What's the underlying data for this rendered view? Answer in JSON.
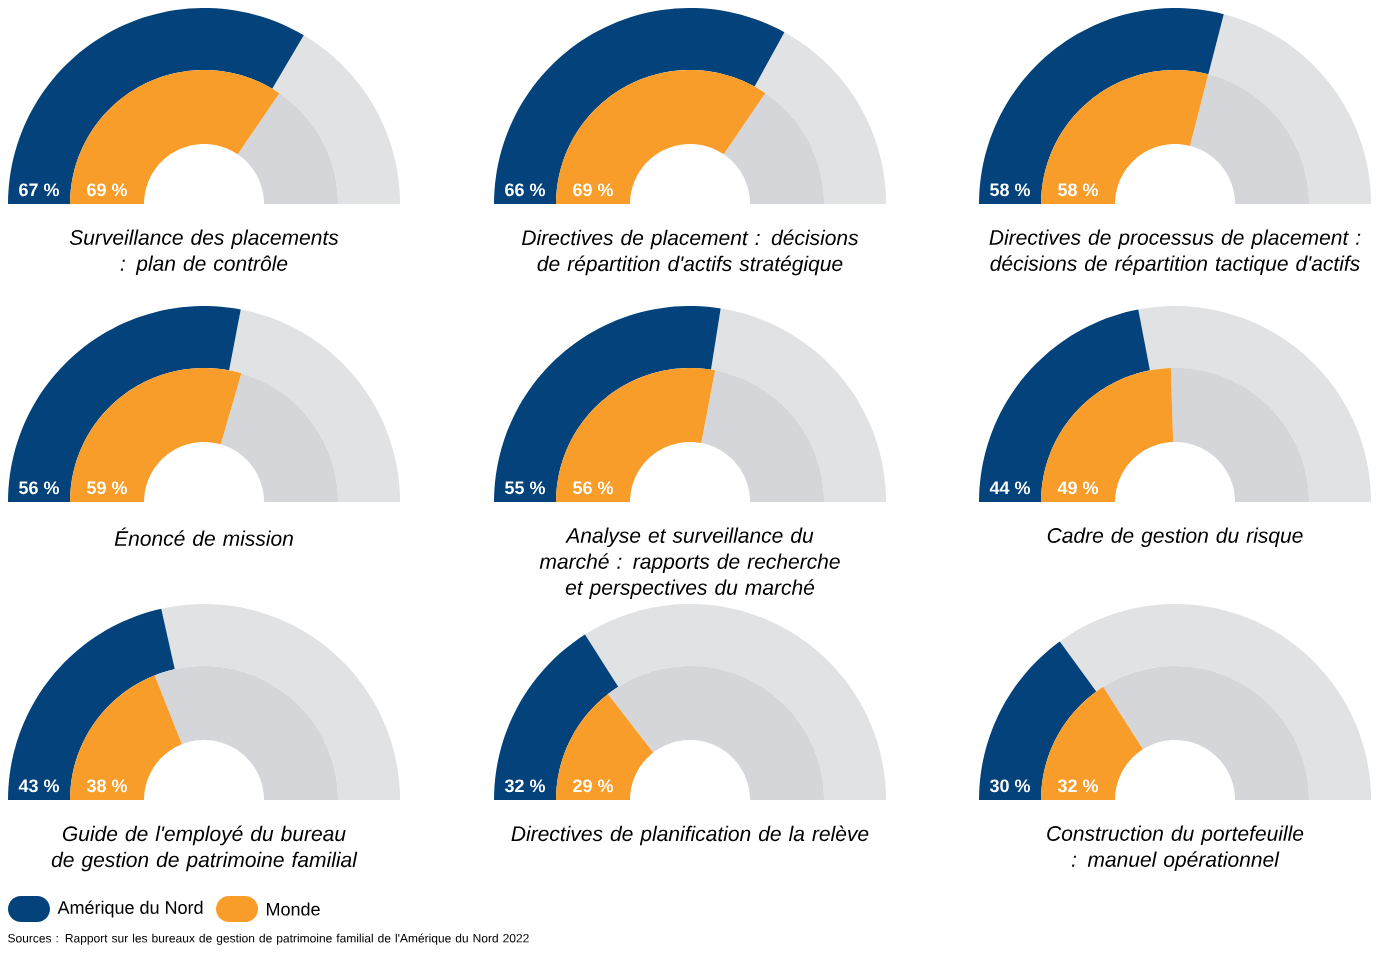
{
  "chart_data": {
    "type": "other",
    "categories": [
      "Surveillance des placements : plan de contrôle",
      "Directives de placement : décisions de répartition d'actifs stratégique",
      "Directives de processus de placement : décisions de répartition tactique d'actifs",
      "Énoncé de mission",
      "Analyse et surveillance du marché : rapports de recherche et perspectives du marché",
      "Cadre de gestion du risque",
      "Guide de l'employé du bureau de gestion de patrimoine familial",
      "Directives de planification de la relève",
      "Construction du portefeuille : manuel opérationnel"
    ],
    "series": [
      {
        "name": "Amérique du Nord",
        "color": "#03427a",
        "values": [
          67,
          66,
          58,
          56,
          55,
          44,
          43,
          32,
          30
        ],
        "value_labels": [
          "67 %",
          "66 %",
          "58 %",
          "56 %",
          "55 %",
          "44 %",
          "43 %",
          "32 %",
          "30 %"
        ]
      },
      {
        "name": "Monde",
        "color": "#f89c2a",
        "values": [
          69,
          69,
          58,
          59,
          56,
          49,
          38,
          29,
          32
        ],
        "value_labels": [
          "69 %",
          "69 %",
          "58 %",
          "59 %",
          "56 %",
          "49 %",
          "38 %",
          "29 %",
          "32 %"
        ]
      }
    ],
    "legend": "bottom left",
    "annotations": [
      "Sources : Rapport sur les bureaux de gestion de patrimoine familial de l'Amérique du Nord 2022"
    ]
  }
}
